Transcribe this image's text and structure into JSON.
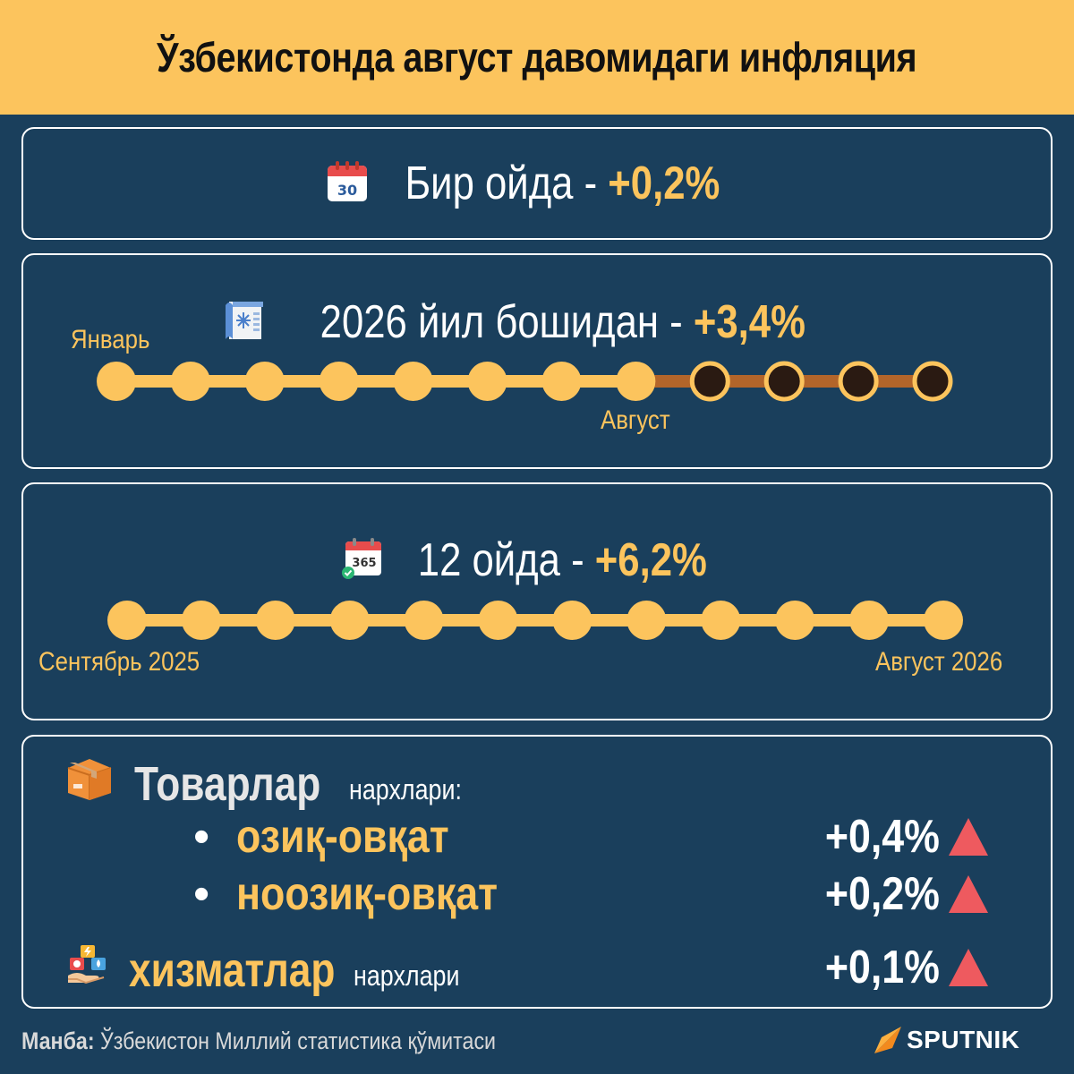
{
  "title": "Ўзбекистонда август давомидаги инфляция",
  "monthly": {
    "icon": "calendar-30-icon",
    "calendar_day": "30",
    "label": "Бир ойда - ",
    "value": "+0,2%"
  },
  "ytd": {
    "icon": "snowflake-calendar-icon",
    "label": "2026 йил бошидан - ",
    "value": "+3,4%",
    "start_label": "Январь",
    "current_label": "Август",
    "months_total": 12,
    "months_elapsed": 8
  },
  "annual": {
    "icon": "calendar-365-icon",
    "calendar_text": "365",
    "label": "12 ойда - ",
    "value": "+6,2%",
    "start_label": "Сентябрь 2025",
    "end_label": "Август 2026",
    "months_total": 12
  },
  "goods": {
    "icon": "box-icon",
    "title": "Товарлар",
    "suffix": "нархлари:",
    "items": [
      {
        "label": "озиқ-овқат",
        "value": "+0,4%",
        "trend": "up"
      },
      {
        "label": "ноозиқ-овқат",
        "value": "+0,2%",
        "trend": "up"
      }
    ]
  },
  "services": {
    "icon": "services-icon",
    "title": "хизматлар",
    "suffix": "нархлари",
    "value": "+0,1%",
    "trend": "up"
  },
  "footer": {
    "source_label": "Манба:",
    "source_text": " Ўзбекистон Миллий статистика қўмитаси",
    "logo_text": "SPUTNIK"
  },
  "colors": {
    "accent": "#fcc45d",
    "background": "#1a3f5c",
    "future_track": "#b3652a",
    "future_dot": "#2a1a12",
    "trend_up": "#ee5a5f"
  }
}
